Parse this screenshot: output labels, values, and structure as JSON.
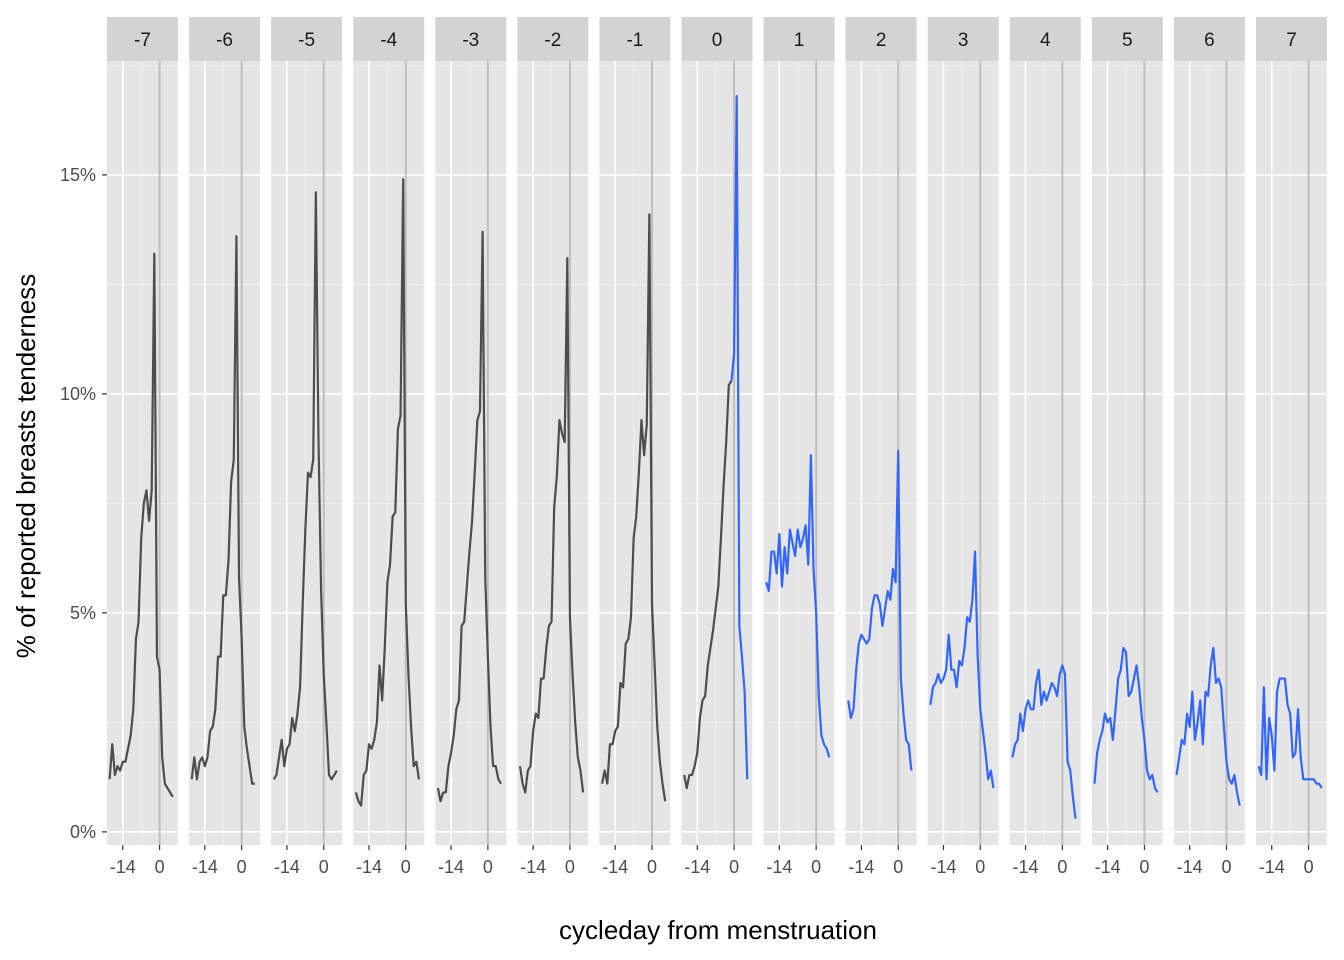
{
  "chart_data": {
    "type": "line",
    "xlabel": "cycleday from menstruation",
    "ylabel": "% of reported breasts tenderness",
    "x_range": [
      -20,
      7
    ],
    "y_range": [
      -0.3,
      17.6
    ],
    "y_ticks": [
      0,
      5,
      10,
      15
    ],
    "y_tick_labels": [
      "0%",
      "5%",
      "10%",
      "15%"
    ],
    "x_ticks": [
      -14,
      0
    ],
    "x_tick_labels": [
      "-14",
      "0"
    ],
    "reference_x": 0,
    "colors": {
      "before": "#4d4d4d",
      "after": "#3366ff",
      "reference": "#bebebe"
    },
    "panels": [
      {
        "label": "-7",
        "x": [
          -19,
          -18,
          -17,
          -16,
          -15,
          -14,
          -13,
          -12,
          -11,
          -10,
          -9,
          -8,
          -7,
          -6,
          -5,
          -4,
          -3,
          -2,
          -1,
          0,
          1,
          2,
          3,
          4,
          5
        ],
        "y": [
          1.2,
          2.0,
          1.3,
          1.5,
          1.4,
          1.6,
          1.6,
          1.9,
          2.2,
          2.8,
          4.4,
          4.8,
          6.7,
          7.5,
          7.8,
          7.1,
          7.8,
          13.2,
          4.0,
          3.7,
          1.7,
          1.1,
          1.0,
          0.9,
          0.8
        ],
        "color_from_x": 99
      },
      {
        "label": "-6",
        "x": [
          -19,
          -18,
          -17,
          -16,
          -15,
          -14,
          -13,
          -12,
          -11,
          -10,
          -9,
          -8,
          -7,
          -6,
          -5,
          -4,
          -3,
          -2,
          -1,
          0,
          1,
          2,
          3,
          4,
          5
        ],
        "y": [
          1.2,
          1.7,
          1.2,
          1.6,
          1.7,
          1.5,
          1.7,
          2.3,
          2.4,
          2.8,
          4.0,
          4.0,
          5.4,
          5.4,
          6.2,
          8.0,
          8.5,
          13.6,
          5.8,
          4.4,
          2.4,
          1.9,
          1.5,
          1.1,
          1.1
        ],
        "color_from_x": 99
      },
      {
        "label": "-5",
        "x": [
          -19,
          -18,
          -17,
          -16,
          -15,
          -14,
          -13,
          -12,
          -11,
          -10,
          -9,
          -8,
          -7,
          -6,
          -5,
          -4,
          -3,
          -2,
          -1,
          0,
          1,
          2,
          3,
          4,
          5
        ],
        "y": [
          1.2,
          1.3,
          1.7,
          2.1,
          1.5,
          1.9,
          2.0,
          2.6,
          2.3,
          2.7,
          3.3,
          5.2,
          6.9,
          8.2,
          8.1,
          8.5,
          14.6,
          9.0,
          5.5,
          3.6,
          2.5,
          1.3,
          1.2,
          1.3,
          1.4
        ],
        "color_from_x": 99
      },
      {
        "label": "-4",
        "x": [
          -19,
          -18,
          -17,
          -16,
          -15,
          -14,
          -13,
          -12,
          -11,
          -10,
          -9,
          -8,
          -7,
          -6,
          -5,
          -4,
          -3,
          -2,
          -1,
          0,
          1,
          2,
          3,
          4,
          5
        ],
        "y": [
          0.9,
          0.7,
          0.6,
          1.3,
          1.4,
          2.0,
          1.9,
          2.1,
          2.5,
          3.8,
          3.0,
          4.2,
          5.7,
          6.1,
          7.2,
          7.3,
          9.2,
          9.5,
          14.9,
          5.2,
          3.6,
          2.4,
          1.5,
          1.6,
          1.2
        ],
        "color_from_x": 99
      },
      {
        "label": "-3",
        "x": [
          -19,
          -18,
          -17,
          -16,
          -15,
          -14,
          -13,
          -12,
          -11,
          -10,
          -9,
          -8,
          -7,
          -6,
          -5,
          -4,
          -3,
          -2,
          -1,
          0,
          1,
          2,
          3,
          4,
          5
        ],
        "y": [
          1.0,
          0.7,
          0.9,
          0.9,
          1.5,
          1.8,
          2.2,
          2.8,
          3.0,
          4.7,
          4.8,
          5.6,
          6.4,
          7.1,
          8.2,
          9.4,
          9.6,
          13.7,
          5.8,
          4.0,
          2.4,
          1.5,
          1.5,
          1.2,
          1.1
        ],
        "color_from_x": 99
      },
      {
        "label": "-2",
        "x": [
          -19,
          -18,
          -17,
          -16,
          -15,
          -14,
          -13,
          -12,
          -11,
          -10,
          -9,
          -8,
          -7,
          -6,
          -5,
          -4,
          -3,
          -2,
          -1,
          0,
          1,
          2,
          3,
          4,
          5
        ],
        "y": [
          1.5,
          1.1,
          0.9,
          1.4,
          1.5,
          2.3,
          2.7,
          2.6,
          3.5,
          3.5,
          4.2,
          4.7,
          4.8,
          7.4,
          8.1,
          9.4,
          9.1,
          8.9,
          13.1,
          4.9,
          3.6,
          2.5,
          1.7,
          1.4,
          0.9
        ],
        "color_from_x": 99
      },
      {
        "label": "-1",
        "x": [
          -19,
          -18,
          -17,
          -16,
          -15,
          -14,
          -13,
          -12,
          -11,
          -10,
          -9,
          -8,
          -7,
          -6,
          -5,
          -4,
          -3,
          -2,
          -1,
          0,
          1,
          2,
          3,
          4,
          5
        ],
        "y": [
          1.1,
          1.4,
          1.1,
          2.0,
          2.0,
          2.3,
          2.4,
          3.4,
          3.3,
          4.3,
          4.4,
          4.9,
          6.7,
          7.2,
          8.2,
          9.4,
          8.6,
          9.3,
          14.1,
          5.2,
          3.8,
          2.4,
          1.6,
          1.1,
          0.7
        ],
        "color_from_x": 99
      },
      {
        "label": "0",
        "x": [
          -19,
          -18,
          -17,
          -16,
          -15,
          -14,
          -13,
          -12,
          -11,
          -10,
          -9,
          -8,
          -7,
          -6,
          -5,
          -4,
          -3,
          -2,
          -1,
          0,
          1,
          2,
          3,
          4,
          5
        ],
        "y": [
          1.3,
          1.0,
          1.3,
          1.3,
          1.5,
          1.8,
          2.6,
          3.0,
          3.1,
          3.8,
          4.2,
          4.6,
          5.1,
          5.6,
          6.7,
          7.9,
          8.9,
          10.2,
          10.3,
          10.9,
          16.8,
          4.7,
          4.0,
          3.2,
          1.2
        ],
        "color_from_x": -0.5
      },
      {
        "label": "1",
        "x": [
          -19,
          -18,
          -17,
          -16,
          -15,
          -14,
          -13,
          -12,
          -11,
          -10,
          -9,
          -8,
          -7,
          -6,
          -5,
          -4,
          -3,
          -2,
          -1,
          0,
          1,
          2,
          3,
          4,
          5
        ],
        "y": [
          5.7,
          5.5,
          6.4,
          6.4,
          5.9,
          6.8,
          5.6,
          6.5,
          5.9,
          6.9,
          6.6,
          6.3,
          6.9,
          6.5,
          6.7,
          7.0,
          6.1,
          8.6,
          6.0,
          5.0,
          3.1,
          2.2,
          2.0,
          1.9,
          1.7
        ],
        "color_from_x": -99
      },
      {
        "label": "2",
        "x": [
          -19,
          -18,
          -17,
          -16,
          -15,
          -14,
          -13,
          -12,
          -11,
          -10,
          -9,
          -8,
          -7,
          -6,
          -5,
          -4,
          -3,
          -2,
          -1,
          0,
          1,
          2,
          3,
          4,
          5
        ],
        "y": [
          3.0,
          2.6,
          2.8,
          3.7,
          4.3,
          4.5,
          4.4,
          4.3,
          4.4,
          5.1,
          5.4,
          5.4,
          5.2,
          4.7,
          5.1,
          5.5,
          5.3,
          6.0,
          5.7,
          8.7,
          3.5,
          2.7,
          2.1,
          2.0,
          1.4
        ],
        "color_from_x": -99
      },
      {
        "label": "3",
        "x": [
          -19,
          -18,
          -17,
          -16,
          -15,
          -14,
          -13,
          -12,
          -11,
          -10,
          -9,
          -8,
          -7,
          -6,
          -5,
          -4,
          -3,
          -2,
          -1,
          0,
          1,
          2,
          3,
          4,
          5
        ],
        "y": [
          2.9,
          3.3,
          3.4,
          3.6,
          3.4,
          3.5,
          3.7,
          4.5,
          3.7,
          3.7,
          3.3,
          3.9,
          3.8,
          4.2,
          4.9,
          4.8,
          5.3,
          6.4,
          4.0,
          2.8,
          2.3,
          1.8,
          1.2,
          1.4,
          1.0
        ],
        "color_from_x": -99
      },
      {
        "label": "4",
        "x": [
          -19,
          -18,
          -17,
          -16,
          -15,
          -14,
          -13,
          -12,
          -11,
          -10,
          -9,
          -8,
          -7,
          -6,
          -5,
          -4,
          -3,
          -2,
          -1,
          0,
          1,
          2,
          3,
          4,
          5
        ],
        "y": [
          1.7,
          2.0,
          2.1,
          2.7,
          2.3,
          2.8,
          3.0,
          2.8,
          2.8,
          3.4,
          3.7,
          2.9,
          3.2,
          3.0,
          3.2,
          3.4,
          3.3,
          3.1,
          3.6,
          3.8,
          3.6,
          1.6,
          1.4,
          0.8,
          0.3
        ],
        "color_from_x": -99
      },
      {
        "label": "5",
        "x": [
          -19,
          -18,
          -17,
          -16,
          -15,
          -14,
          -13,
          -12,
          -11,
          -10,
          -9,
          -8,
          -7,
          -6,
          -5,
          -4,
          -3,
          -2,
          -1,
          0,
          1,
          2,
          3,
          4,
          5
        ],
        "y": [
          1.1,
          1.8,
          2.1,
          2.3,
          2.7,
          2.5,
          2.6,
          2.1,
          2.8,
          3.5,
          3.7,
          4.2,
          4.1,
          3.1,
          3.2,
          3.5,
          3.8,
          3.3,
          2.6,
          2.1,
          1.4,
          1.2,
          1.3,
          1.0,
          0.9
        ],
        "color_from_x": -99
      },
      {
        "label": "6",
        "x": [
          -19,
          -18,
          -17,
          -16,
          -15,
          -14,
          -13,
          -12,
          -11,
          -10,
          -9,
          -8,
          -7,
          -6,
          -5,
          -4,
          -3,
          -2,
          -1,
          0,
          1,
          2,
          3,
          4,
          5
        ],
        "y": [
          1.3,
          1.7,
          2.1,
          2.0,
          2.7,
          2.4,
          3.2,
          2.1,
          2.5,
          3.0,
          2.0,
          3.2,
          3.1,
          3.8,
          4.2,
          3.4,
          3.5,
          3.3,
          2.4,
          1.6,
          1.2,
          1.1,
          1.3,
          0.9,
          0.6
        ],
        "color_from_x": -99
      },
      {
        "label": "7",
        "x": [
          -19,
          -18,
          -17,
          -16,
          -15,
          -14,
          -13,
          -12,
          -11,
          -10,
          -9,
          -8,
          -7,
          -6,
          -5,
          -4,
          -3,
          -2,
          -1,
          0,
          1,
          2,
          3,
          4,
          5
        ],
        "y": [
          1.5,
          1.3,
          3.3,
          1.2,
          2.6,
          2.2,
          1.4,
          3.2,
          3.5,
          3.5,
          3.5,
          2.9,
          2.7,
          1.7,
          1.8,
          2.8,
          1.7,
          1.2,
          1.2,
          1.2,
          1.2,
          1.2,
          1.1,
          1.1,
          1.0
        ],
        "color_from_x": -99
      }
    ]
  }
}
